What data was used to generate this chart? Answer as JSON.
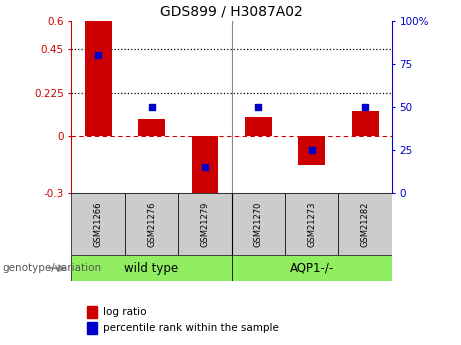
{
  "title": "GDS899 / H3087A02",
  "samples": [
    "GSM21266",
    "GSM21276",
    "GSM21279",
    "GSM21270",
    "GSM21273",
    "GSM21282"
  ],
  "log_ratios": [
    0.6,
    0.085,
    -0.325,
    0.1,
    -0.155,
    0.13
  ],
  "percentile_ranks": [
    80,
    50,
    15,
    50,
    25,
    50
  ],
  "bar_color": "#cc0000",
  "dot_color": "#0000cc",
  "ylim_left": [
    -0.3,
    0.6
  ],
  "ylim_right": [
    0,
    100
  ],
  "yticks_left": [
    -0.3,
    0,
    0.225,
    0.45,
    0.6
  ],
  "yticks_right": [
    0,
    25,
    50,
    75,
    100
  ],
  "ytick_labels_left": [
    "-0.3",
    "0",
    "0.225",
    "0.45",
    "0.6"
  ],
  "ytick_labels_right": [
    "0",
    "25",
    "50",
    "75",
    "100%"
  ],
  "hline_dotted_values": [
    0.225,
    0.45
  ],
  "hline_dashed_value": 0,
  "bar_width": 0.5,
  "dot_size": 25,
  "left_axis_color": "#cc0000",
  "right_axis_color": "#0000cc",
  "genotype_label": "genotype/variation",
  "legend_log_ratio": "log ratio",
  "legend_percentile": "percentile rank within the sample",
  "title_fontsize": 10,
  "tick_fontsize": 7.5,
  "sample_fontsize": 6,
  "group_fontsize": 8.5,
  "legend_fontsize": 7.5,
  "genotype_fontsize": 7.5,
  "group1_label": "wild type",
  "group2_label": "AQP1-/-",
  "group_color": "#90ee60"
}
